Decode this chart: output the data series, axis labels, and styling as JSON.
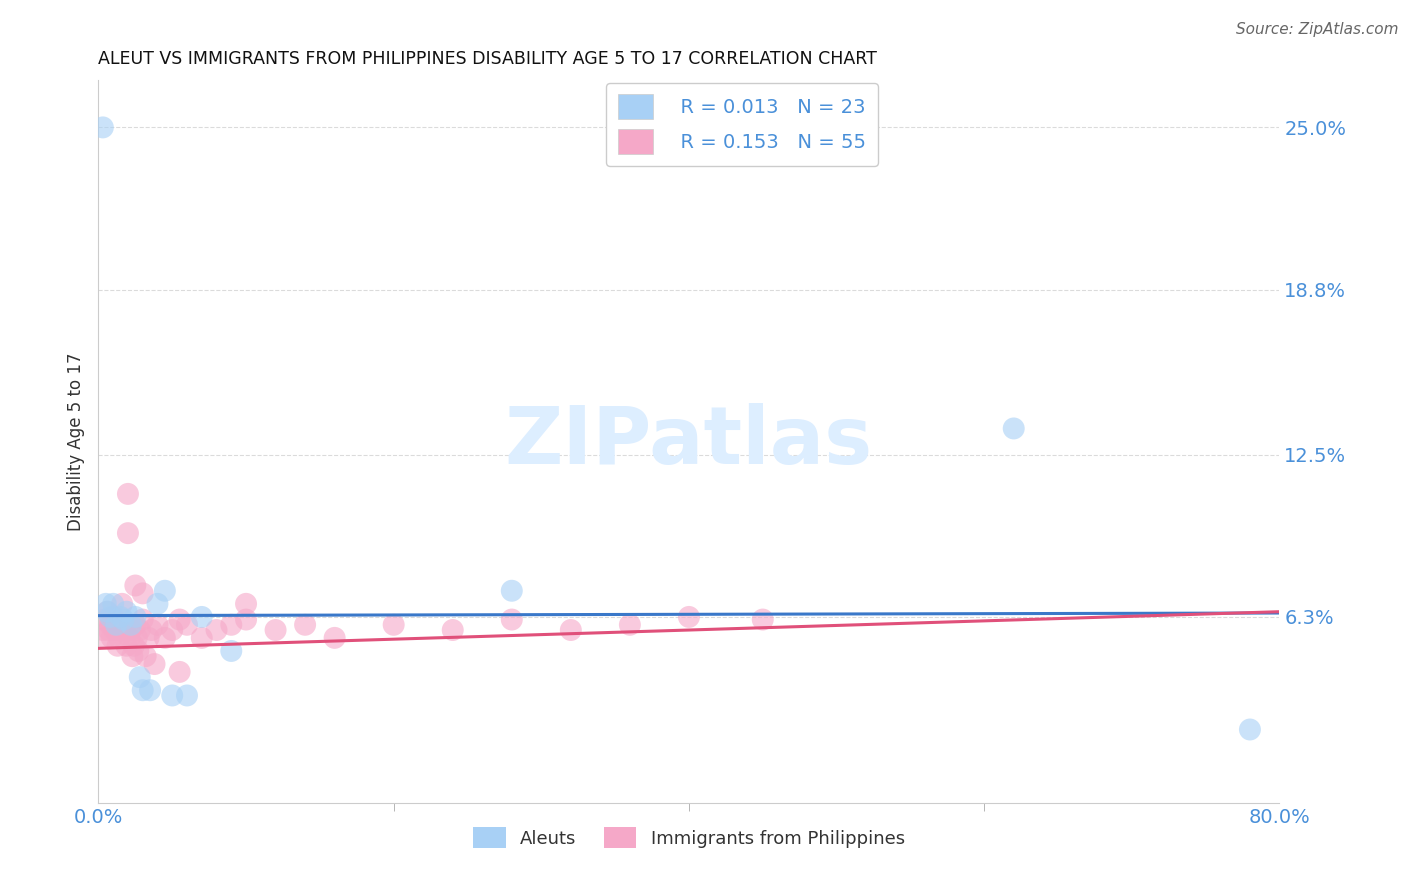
{
  "title": "ALEUT VS IMMIGRANTS FROM PHILIPPINES DISABILITY AGE 5 TO 17 CORRELATION CHART",
  "source": "Source: ZipAtlas.com",
  "ylabel": "Disability Age 5 to 17",
  "xlim": [
    0.0,
    0.8
  ],
  "ylim": [
    -0.008,
    0.268
  ],
  "color_blue": "#a8d0f5",
  "color_pink": "#f5a8c8",
  "line_blue": "#3a78c9",
  "line_pink": "#e0507a",
  "watermark_color": "#ddeeff",
  "background_color": "#ffffff",
  "grid_color": "#cccccc",
  "aleuts_x": [
    0.008,
    0.003,
    0.006,
    0.01,
    0.012,
    0.015,
    0.017,
    0.019,
    0.022,
    0.025,
    0.028,
    0.03,
    0.035,
    0.04,
    0.045,
    0.05,
    0.06,
    0.07,
    0.09,
    0.28,
    0.62,
    0.78,
    0.005
  ],
  "aleuts_y": [
    0.063,
    0.25,
    0.065,
    0.068,
    0.06,
    0.063,
    0.062,
    0.065,
    0.06,
    0.063,
    0.04,
    0.035,
    0.035,
    0.068,
    0.073,
    0.033,
    0.033,
    0.063,
    0.05,
    0.073,
    0.135,
    0.02,
    0.068
  ],
  "phil_x": [
    0.003,
    0.004,
    0.005,
    0.006,
    0.007,
    0.008,
    0.009,
    0.01,
    0.011,
    0.012,
    0.013,
    0.014,
    0.015,
    0.016,
    0.017,
    0.018,
    0.019,
    0.02,
    0.021,
    0.022,
    0.023,
    0.024,
    0.025,
    0.026,
    0.027,
    0.028,
    0.03,
    0.032,
    0.034,
    0.036,
    0.038,
    0.04,
    0.045,
    0.05,
    0.055,
    0.06,
    0.07,
    0.08,
    0.09,
    0.1,
    0.12,
    0.14,
    0.16,
    0.2,
    0.24,
    0.28,
    0.32,
    0.36,
    0.4,
    0.45,
    0.02,
    0.025,
    0.03,
    0.055,
    0.1
  ],
  "phil_y": [
    0.058,
    0.062,
    0.055,
    0.065,
    0.058,
    0.06,
    0.055,
    0.063,
    0.058,
    0.06,
    0.052,
    0.055,
    0.058,
    0.068,
    0.06,
    0.058,
    0.052,
    0.11,
    0.055,
    0.058,
    0.048,
    0.052,
    0.06,
    0.055,
    0.05,
    0.058,
    0.062,
    0.048,
    0.055,
    0.058,
    0.045,
    0.06,
    0.055,
    0.058,
    0.062,
    0.06,
    0.055,
    0.058,
    0.06,
    0.062,
    0.058,
    0.06,
    0.055,
    0.06,
    0.058,
    0.062,
    0.058,
    0.06,
    0.063,
    0.062,
    0.095,
    0.075,
    0.072,
    0.042,
    0.068
  ],
  "blue_line_x": [
    0.0,
    0.8
  ],
  "blue_line_y": [
    0.0635,
    0.0645
  ],
  "pink_line_x": [
    0.0,
    0.8
  ],
  "pink_line_y": [
    0.051,
    0.065
  ]
}
